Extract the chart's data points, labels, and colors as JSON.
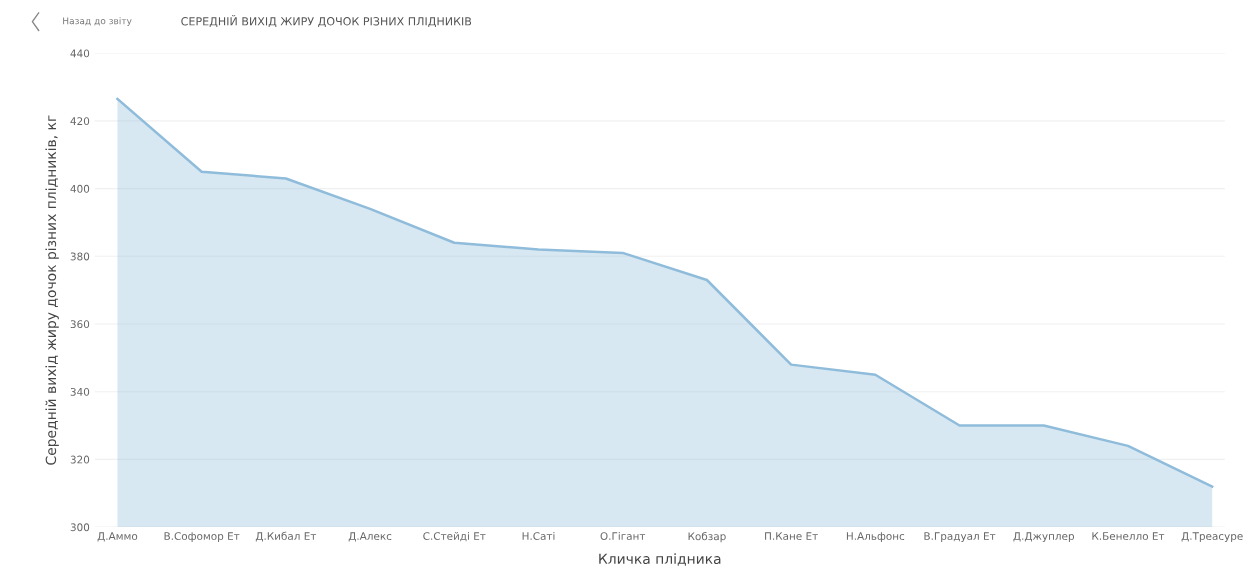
{
  "chart_data": {
    "type": "area",
    "title": "СЕРЕДНІЙ ВИХІД ЖИРУ ДОЧОК РІЗНИХ ПЛІДНИКІВ",
    "annotations": [
      "Назад до звіту"
    ],
    "xlabel": "Кличка плідника",
    "ylabel": "Середній вихід жиру дочок різних плідників, кг",
    "categories": [
      "Д.Аммо",
      "В.Софомор Ет",
      "Д.Кибал Ет",
      "Д.Алекс",
      "С.Стейді Ет",
      "Н.Саті",
      "О.Гігант",
      "Кобзар",
      "П.Кане Ет",
      "Н.Альфонс",
      "В.Градуал Ет",
      "Д.Джуплер",
      "К.Бенелло Ет",
      "Д.Треасуре"
    ],
    "series": [
      {
        "color": "#8fbcdb",
        "values": [
          426.5,
          405,
          403,
          394,
          384,
          382,
          381,
          373,
          348,
          345,
          330,
          330,
          324,
          312
        ]
      }
    ],
    "ylim": [
      300,
      440
    ],
    "yticks": [
      300,
      320,
      340,
      360,
      380,
      400,
      420,
      440
    ],
    "grid": "y",
    "legend": false
  }
}
